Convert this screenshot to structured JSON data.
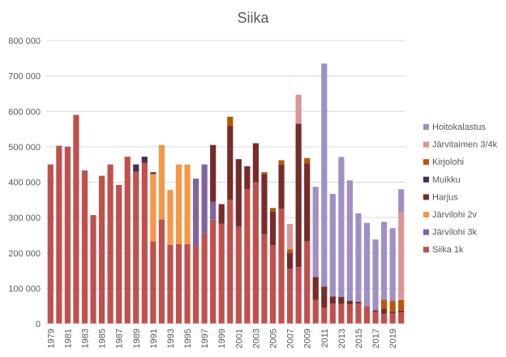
{
  "chart_data": {
    "type": "bar",
    "stacked": true,
    "title": "Siika",
    "xlabel": "",
    "ylabel": "",
    "ylim": [
      0,
      800000
    ],
    "yticks": [
      0,
      100000,
      200000,
      300000,
      400000,
      500000,
      600000,
      700000,
      800000
    ],
    "ytick_labels": [
      "0",
      "100 000",
      "200 000",
      "300 000",
      "400 000",
      "500 000",
      "600 000",
      "700 000",
      "800 000"
    ],
    "grid": true,
    "legend_position": "right",
    "categories": [
      "1979",
      "1980",
      "1981",
      "1982",
      "1983",
      "1984",
      "1985",
      "1986",
      "1987",
      "1988",
      "1989",
      "1990",
      "1991",
      "1992",
      "1993",
      "1994",
      "1995",
      "1996",
      "1997",
      "1998",
      "1999",
      "2000",
      "2001",
      "2002",
      "2003",
      "2004",
      "2005",
      "2006",
      "2007",
      "2008",
      "2009",
      "2010",
      "2011",
      "2012",
      "2013",
      "2014",
      "2015",
      "2016",
      "2017",
      "2018",
      "2019",
      "2020"
    ],
    "series": [
      {
        "name": "Siika 1k",
        "color": "#c0504d",
        "values": [
          450000,
          503000,
          500000,
          590000,
          433000,
          307000,
          418000,
          450000,
          392000,
          472000,
          430000,
          455000,
          233000,
          295000,
          223000,
          225000,
          225000,
          220000,
          255000,
          295000,
          283000,
          350000,
          275000,
          380000,
          400000,
          253000,
          222000,
          325000,
          155000,
          160000,
          233000,
          67000,
          45000,
          57000,
          56000,
          55000,
          57000,
          50000,
          33000,
          28000,
          30000,
          32000
        ]
      },
      {
        "name": "Järvilohi 3k",
        "color": "#8064a2",
        "values": [
          0,
          0,
          0,
          0,
          0,
          0,
          0,
          0,
          0,
          0,
          0,
          0,
          0,
          0,
          0,
          0,
          0,
          190000,
          195000,
          50000,
          0,
          0,
          0,
          0,
          0,
          0,
          0,
          0,
          0,
          0,
          0,
          0,
          0,
          0,
          0,
          0,
          0,
          0,
          0,
          0,
          0,
          0
        ]
      },
      {
        "name": "Järvilohi 2v",
        "color": "#f79646",
        "values": [
          0,
          0,
          0,
          0,
          0,
          0,
          0,
          0,
          0,
          0,
          0,
          0,
          190000,
          210000,
          155000,
          225000,
          225000,
          0,
          0,
          0,
          0,
          0,
          0,
          0,
          0,
          0,
          0,
          0,
          0,
          0,
          0,
          0,
          0,
          0,
          0,
          0,
          0,
          0,
          0,
          0,
          0,
          0
        ]
      },
      {
        "name": "Harjus",
        "color": "#772c2a",
        "values": [
          0,
          0,
          0,
          0,
          0,
          0,
          0,
          0,
          0,
          0,
          0,
          0,
          0,
          0,
          0,
          0,
          0,
          0,
          0,
          160000,
          55000,
          210000,
          190000,
          65000,
          110000,
          170000,
          95000,
          125000,
          45000,
          405000,
          220000,
          65000,
          60000,
          20000,
          20000,
          10000,
          5000,
          0,
          5000,
          15000,
          5000,
          5000
        ]
      },
      {
        "name": "Muikku",
        "color": "#403152",
        "values": [
          0,
          0,
          0,
          0,
          0,
          0,
          0,
          0,
          0,
          0,
          20000,
          17000,
          5000,
          0,
          0,
          0,
          0,
          0,
          0,
          0,
          0,
          0,
          0,
          0,
          0,
          0,
          0,
          0,
          0,
          0,
          0,
          0,
          0,
          0,
          0,
          0,
          0,
          0,
          0,
          0,
          0,
          0
        ]
      },
      {
        "name": "Kirjolohi",
        "color": "#b65708",
        "values": [
          0,
          0,
          0,
          0,
          0,
          0,
          0,
          0,
          0,
          0,
          0,
          0,
          0,
          0,
          0,
          0,
          0,
          0,
          0,
          0,
          0,
          25000,
          0,
          0,
          0,
          5000,
          10000,
          12000,
          10000,
          0,
          15000,
          0,
          0,
          0,
          0,
          0,
          0,
          0,
          0,
          25000,
          30000,
          30000
        ]
      },
      {
        "name": "Järvitaimen 3/4k",
        "color": "#d99694",
        "values": [
          0,
          0,
          0,
          0,
          0,
          0,
          0,
          0,
          0,
          0,
          0,
          0,
          0,
          0,
          0,
          0,
          0,
          0,
          0,
          0,
          0,
          0,
          0,
          0,
          0,
          0,
          0,
          0,
          72000,
          82000,
          0,
          0,
          0,
          0,
          0,
          0,
          0,
          0,
          0,
          0,
          0,
          248000
        ]
      },
      {
        "name": "Hoitokalastus",
        "color": "#a08fc2",
        "values": [
          0,
          0,
          0,
          0,
          0,
          0,
          0,
          0,
          0,
          0,
          0,
          0,
          0,
          0,
          0,
          0,
          0,
          0,
          0,
          0,
          0,
          0,
          0,
          0,
          0,
          0,
          0,
          0,
          0,
          0,
          0,
          255000,
          630000,
          290000,
          395000,
          340000,
          250000,
          235000,
          200000,
          220000,
          205000,
          65000
        ]
      }
    ]
  }
}
